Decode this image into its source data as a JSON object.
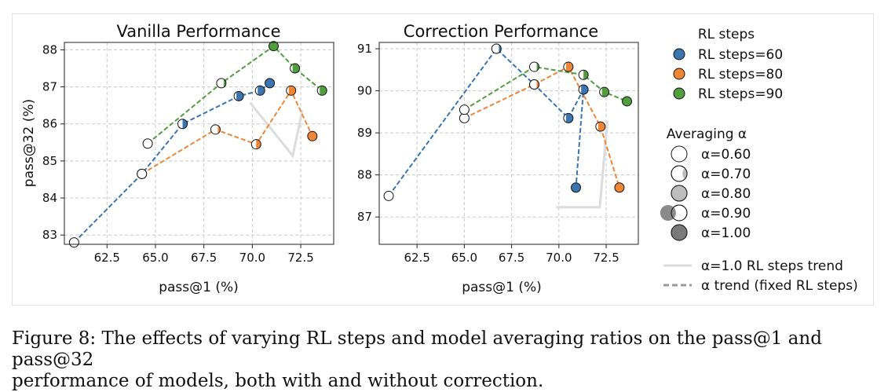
{
  "chart_data": [
    {
      "type": "scatter",
      "title": "Vanilla Performance",
      "xlabel": "pass@1 (%)",
      "ylabel": "pass@32 (%)",
      "xlim": [
        60.3,
        74.2
      ],
      "ylim": [
        82.75,
        88.2
      ],
      "xticks": [
        "62.5",
        "65.0",
        "67.5",
        "70.0",
        "72.5"
      ],
      "yticks": [
        "83",
        "84",
        "85",
        "86",
        "87",
        "88"
      ],
      "grid": true,
      "series": [
        {
          "name": "RL steps=60",
          "color": "#3b75af",
          "points": [
            [
              60.8,
              82.8,
              0.6
            ],
            [
              64.3,
              84.65,
              0.7
            ],
            [
              66.4,
              86.0,
              0.8
            ],
            [
              69.3,
              86.75,
              0.9
            ],
            [
              70.4,
              86.9,
              0.9
            ],
            [
              70.9,
              87.1,
              1.0
            ]
          ]
        },
        {
          "name": "RL steps=80",
          "color": "#ef8636",
          "points": [
            [
              64.3,
              84.65,
              0.6
            ],
            [
              68.1,
              85.85,
              0.7
            ],
            [
              70.2,
              85.45,
              0.8
            ],
            [
              72.0,
              86.9,
              0.9
            ],
            [
              73.1,
              85.67,
              1.0
            ]
          ]
        },
        {
          "name": "RL steps=90",
          "color": "#519e3e",
          "points": [
            [
              64.6,
              85.47,
              0.6
            ],
            [
              68.4,
              87.1,
              0.7
            ],
            [
              71.1,
              88.1,
              1.0
            ],
            [
              72.2,
              87.5,
              0.9
            ],
            [
              73.6,
              86.9,
              0.9
            ]
          ]
        }
      ]
    },
    {
      "type": "scatter",
      "title": "Correction Performance",
      "xlabel": "pass@1 (%)",
      "ylabel": "",
      "xlim": [
        60.5,
        74.2
      ],
      "ylim": [
        86.35,
        91.15
      ],
      "xticks": [
        "62.5",
        "65.0",
        "67.5",
        "70.0",
        "72.5"
      ],
      "yticks": [
        "87",
        "88",
        "89",
        "90",
        "91"
      ],
      "grid": true,
      "series": [
        {
          "name": "RL steps=60",
          "color": "#3b75af",
          "points": [
            [
              61.0,
              87.5,
              0.6
            ],
            [
              66.7,
              91.0,
              0.7
            ],
            [
              68.7,
              90.15,
              0.8
            ],
            [
              70.5,
              89.35,
              0.9
            ],
            [
              71.3,
              90.03,
              0.9
            ],
            [
              70.9,
              87.7,
              1.0
            ]
          ]
        },
        {
          "name": "RL steps=80",
          "color": "#ef8636",
          "points": [
            [
              65.0,
              89.35,
              0.6
            ],
            [
              68.7,
              90.15,
              0.7
            ],
            [
              70.5,
              90.57,
              0.9
            ],
            [
              72.2,
              89.15,
              0.9
            ],
            [
              73.2,
              87.7,
              1.0
            ]
          ]
        },
        {
          "name": "RL steps=90",
          "color": "#519e3e",
          "points": [
            [
              65.0,
              89.55,
              0.6
            ],
            [
              68.7,
              90.57,
              0.7
            ],
            [
              71.3,
              90.38,
              0.8
            ],
            [
              72.4,
              89.97,
              0.9
            ],
            [
              73.6,
              89.75,
              1.0
            ]
          ]
        }
      ]
    }
  ],
  "legend": {
    "rl_title": "RL steps",
    "rl_items": [
      {
        "label": "RL steps=60",
        "color": "#3b75af"
      },
      {
        "label": "RL steps=80",
        "color": "#ef8636"
      },
      {
        "label": "RL steps=90",
        "color": "#519e3e"
      }
    ],
    "alpha_title": "Averaging α",
    "alpha_items": [
      {
        "label": "α=0.60",
        "alpha": 0.6
      },
      {
        "label": "α=0.70",
        "alpha": 0.7
      },
      {
        "label": "α=0.80",
        "alpha": 0.8
      },
      {
        "label": "α=0.90",
        "alpha": 0.9
      },
      {
        "label": "α=1.00",
        "alpha": 1.0
      }
    ],
    "trend_items": [
      {
        "label": "α=1.0 RL steps trend",
        "style": "solid"
      },
      {
        "label": "α trend (fixed RL steps)",
        "style": "dashed"
      }
    ]
  },
  "caption": "Figure 8: The effects of varying RL steps and model averaging ratios on the pass@1 and pass@32\nperformance of models, both with and without correction."
}
